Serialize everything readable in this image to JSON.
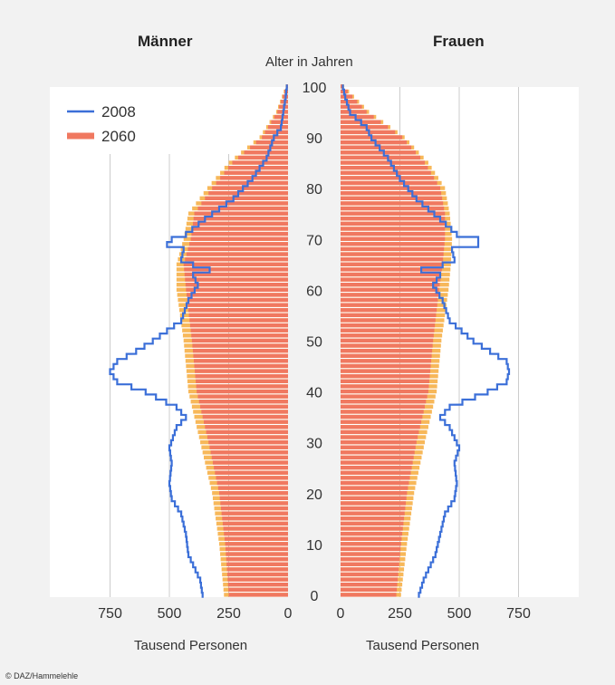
{
  "chart_data": {
    "type": "bar",
    "orientation": "horizontal",
    "title_left": "Männer",
    "title_right": "Frauen",
    "center_axis_label": "Alter in Jahren",
    "age_ticks": [
      0,
      10,
      20,
      30,
      40,
      50,
      60,
      70,
      80,
      90,
      100
    ],
    "x_ticks_left": [
      "750",
      "500",
      "250",
      "0"
    ],
    "x_ticks_right": [
      "0",
      "250",
      "500",
      "750"
    ],
    "x_tick_values_left": [
      750,
      500,
      250,
      0
    ],
    "x_tick_values_right": [
      0,
      250,
      500,
      750
    ],
    "xlabel_left": "Tausend Personen",
    "xlabel_right": "Tausend Personen",
    "xlim": [
      0,
      1000
    ],
    "grid": "vertical",
    "legend_position": "top-left",
    "colors": {
      "series_2060_fill": "#f07860",
      "series_2060_extra": "#f7b85a",
      "series_2008_line": "#3b6fd8",
      "plot_background": "#ffffff",
      "page_background": "#f2f2f2",
      "gridline": "#cccccc"
    },
    "series": [
      {
        "name": "2008",
        "kind": "line",
        "men": {
          "ages": [
            0,
            3,
            8,
            12,
            16,
            19,
            22,
            26,
            29,
            33,
            35,
            37,
            40,
            42,
            44,
            46,
            48,
            50,
            54,
            58,
            61,
            63,
            64,
            65,
            66,
            68,
            69,
            70,
            71,
            74,
            78,
            82,
            86,
            90,
            92,
            95,
            98,
            100
          ],
          "values": [
            360,
            370,
            420,
            430,
            450,
            490,
            500,
            490,
            500,
            470,
            430,
            470,
            600,
            720,
            750,
            720,
            640,
            570,
            450,
            420,
            380,
            400,
            330,
            400,
            450,
            440,
            510,
            490,
            430,
            350,
            230,
            150,
            90,
            60,
            30,
            20,
            10,
            5
          ]
        },
        "women": {
          "ages": [
            0,
            3,
            8,
            12,
            16,
            19,
            22,
            26,
            29,
            33,
            35,
            37,
            40,
            42,
            44,
            46,
            48,
            50,
            54,
            58,
            61,
            63,
            64,
            65,
            66,
            68,
            69,
            70,
            71,
            74,
            78,
            82,
            86,
            90,
            92,
            95,
            98,
            100
          ],
          "values": [
            330,
            350,
            400,
            420,
            440,
            480,
            490,
            480,
            500,
            460,
            420,
            460,
            620,
            700,
            710,
            700,
            630,
            560,
            460,
            430,
            390,
            420,
            340,
            430,
            480,
            470,
            580,
            580,
            490,
            420,
            320,
            250,
            200,
            130,
            110,
            40,
            20,
            10
          ]
        }
      },
      {
        "name": "2060",
        "kind": "bars",
        "men": {
          "ages": [
            0,
            10,
            20,
            30,
            40,
            50,
            60,
            65,
            70,
            75,
            80,
            85,
            90,
            95,
            100
          ],
          "values": [
            270,
            290,
            320,
            370,
            420,
            440,
            470,
            470,
            440,
            420,
            340,
            250,
            120,
            50,
            10
          ]
        },
        "men_inner": {
          "ages": [
            0,
            10,
            20,
            30,
            40,
            50,
            60,
            65,
            70,
            75,
            80,
            85,
            90,
            95,
            100
          ],
          "values": [
            250,
            265,
            290,
            335,
            385,
            405,
            430,
            440,
            410,
            395,
            320,
            235,
            110,
            45,
            8
          ]
        },
        "women": {
          "ages": [
            0,
            10,
            20,
            30,
            40,
            50,
            60,
            65,
            70,
            75,
            80,
            85,
            90,
            95,
            100
          ],
          "values": [
            255,
            280,
            310,
            355,
            405,
            425,
            455,
            465,
            470,
            460,
            440,
            370,
            270,
            120,
            15
          ]
        },
        "women_inner": {
          "ages": [
            0,
            10,
            20,
            30,
            40,
            50,
            60,
            65,
            70,
            75,
            80,
            85,
            90,
            95,
            100
          ],
          "values": [
            235,
            255,
            280,
            320,
            370,
            390,
            415,
            430,
            440,
            440,
            420,
            355,
            260,
            110,
            10
          ]
        }
      }
    ]
  },
  "legend": [
    {
      "label": "2008",
      "color": "#3b6fd8"
    },
    {
      "label": "2060",
      "color": "#f07860"
    }
  ],
  "credit": "© DAZ/Hammelehle"
}
